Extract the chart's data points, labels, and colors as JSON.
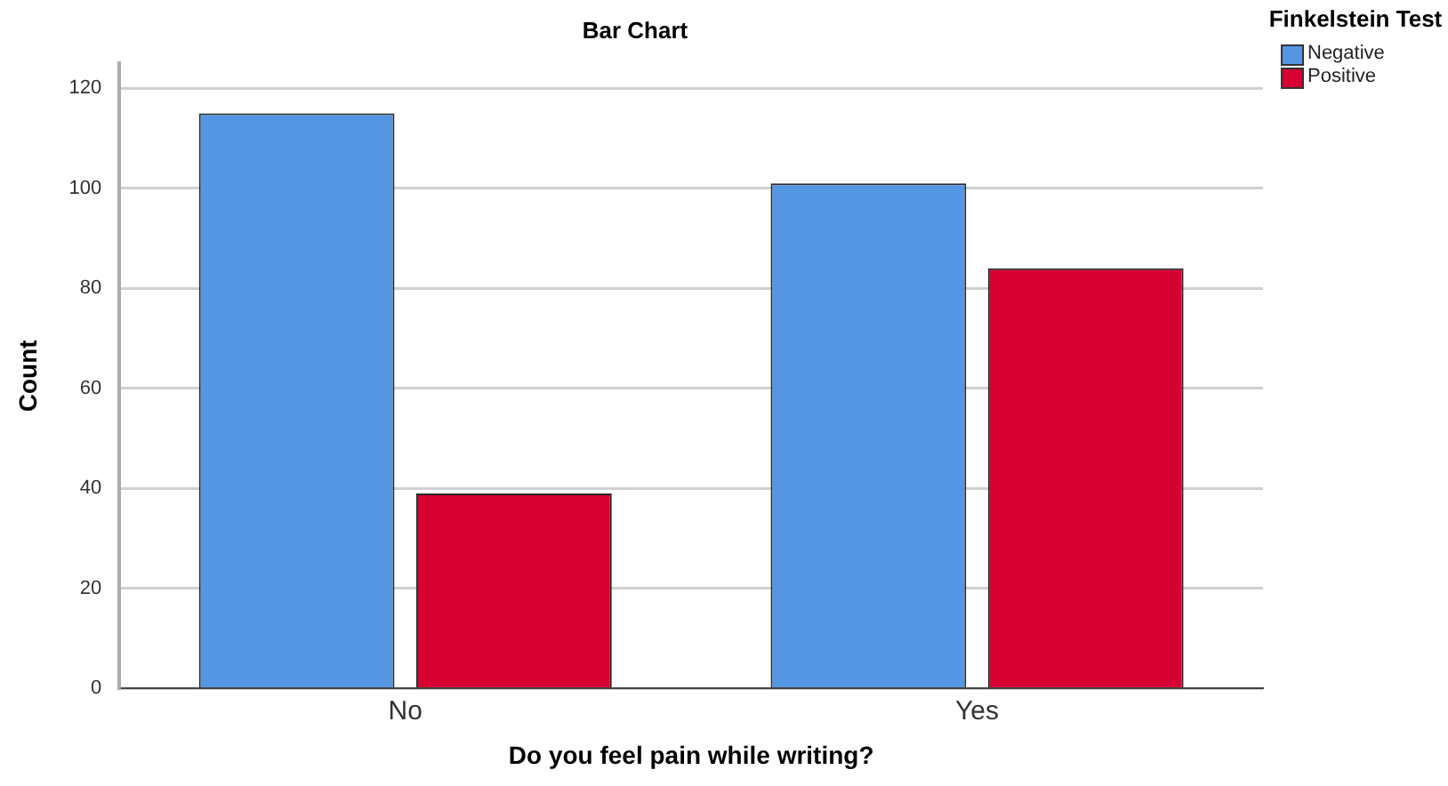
{
  "chart_data": {
    "type": "bar",
    "title": "Bar Chart",
    "xlabel": "Do you feel pain while writing?",
    "ylabel": "Count",
    "legend_title": "Finkelstein Test",
    "categories": [
      "No",
      "Yes"
    ],
    "series": [
      {
        "name": "Negative",
        "color": "#5596e3",
        "values": [
          115,
          101
        ]
      },
      {
        "name": "Positive",
        "color": "#d60032",
        "values": [
          39,
          84
        ]
      }
    ],
    "ylim": [
      0,
      125
    ],
    "yticks": [
      0,
      20,
      40,
      60,
      80,
      100,
      120
    ],
    "grid": "y",
    "legend": "top right"
  }
}
